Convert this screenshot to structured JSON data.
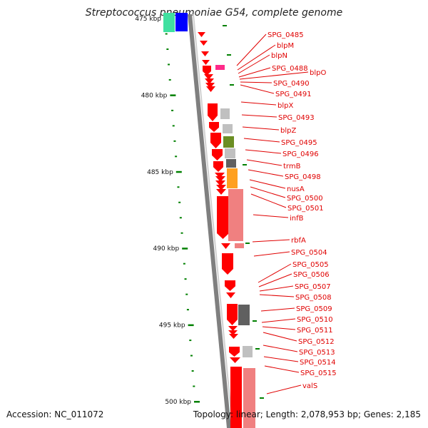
{
  "title": "Streptococcus pneumoniae G54, complete genome",
  "footer": {
    "accession": "Accession: NC_011072",
    "summary": "Topology: linear; Length: 2,078,953 bp; Genes: 2,185"
  },
  "colors": {
    "backbone": "#7f7f7f",
    "gene": "#ff0000",
    "gene_label": "#e00000",
    "tick": "#008000",
    "pink_gene": "#ff2a8a",
    "light_gray": "#c0c0c0",
    "dark_gray": "#606060",
    "olive": "#6b8e23",
    "orange": "#ffa020",
    "salmon": "#f08080",
    "teal": "#40e0a0",
    "blue": "#0000ff"
  },
  "scale": {
    "start_kbp": 475,
    "end_kbp": 500,
    "labeled": [
      {
        "kbp": 475,
        "label": "475 kbp"
      },
      {
        "kbp": 480,
        "label": "480 kbp"
      },
      {
        "kbp": 485,
        "label": "485 kbp"
      },
      {
        "kbp": 490,
        "label": "490 kbp"
      },
      {
        "kbp": 495,
        "label": "495 kbp"
      },
      {
        "kbp": 500,
        "label": "500 kbp"
      }
    ]
  },
  "gene_labels": [
    "SPG_0485",
    "blpM",
    "blpN",
    "SPG_0488",
    "blpO",
    "SPG_0490",
    "SPG_0491",
    "blpX",
    "SPG_0493",
    "blpZ",
    "SPG_0495",
    "SPG_0496",
    "trmB",
    "SPG_0498",
    "nusA",
    "SPG_0500",
    "SPG_0501",
    "infB",
    "rbfA",
    "SPG_0504",
    "SPG_0505",
    "SPG_0506",
    "SPG_0507",
    "SPG_0508",
    "SPG_0509",
    "SPG_0510",
    "SPG_0511",
    "SPG_0512",
    "SPG_0513",
    "SPG_0514",
    "SPG_0515",
    "valS"
  ]
}
